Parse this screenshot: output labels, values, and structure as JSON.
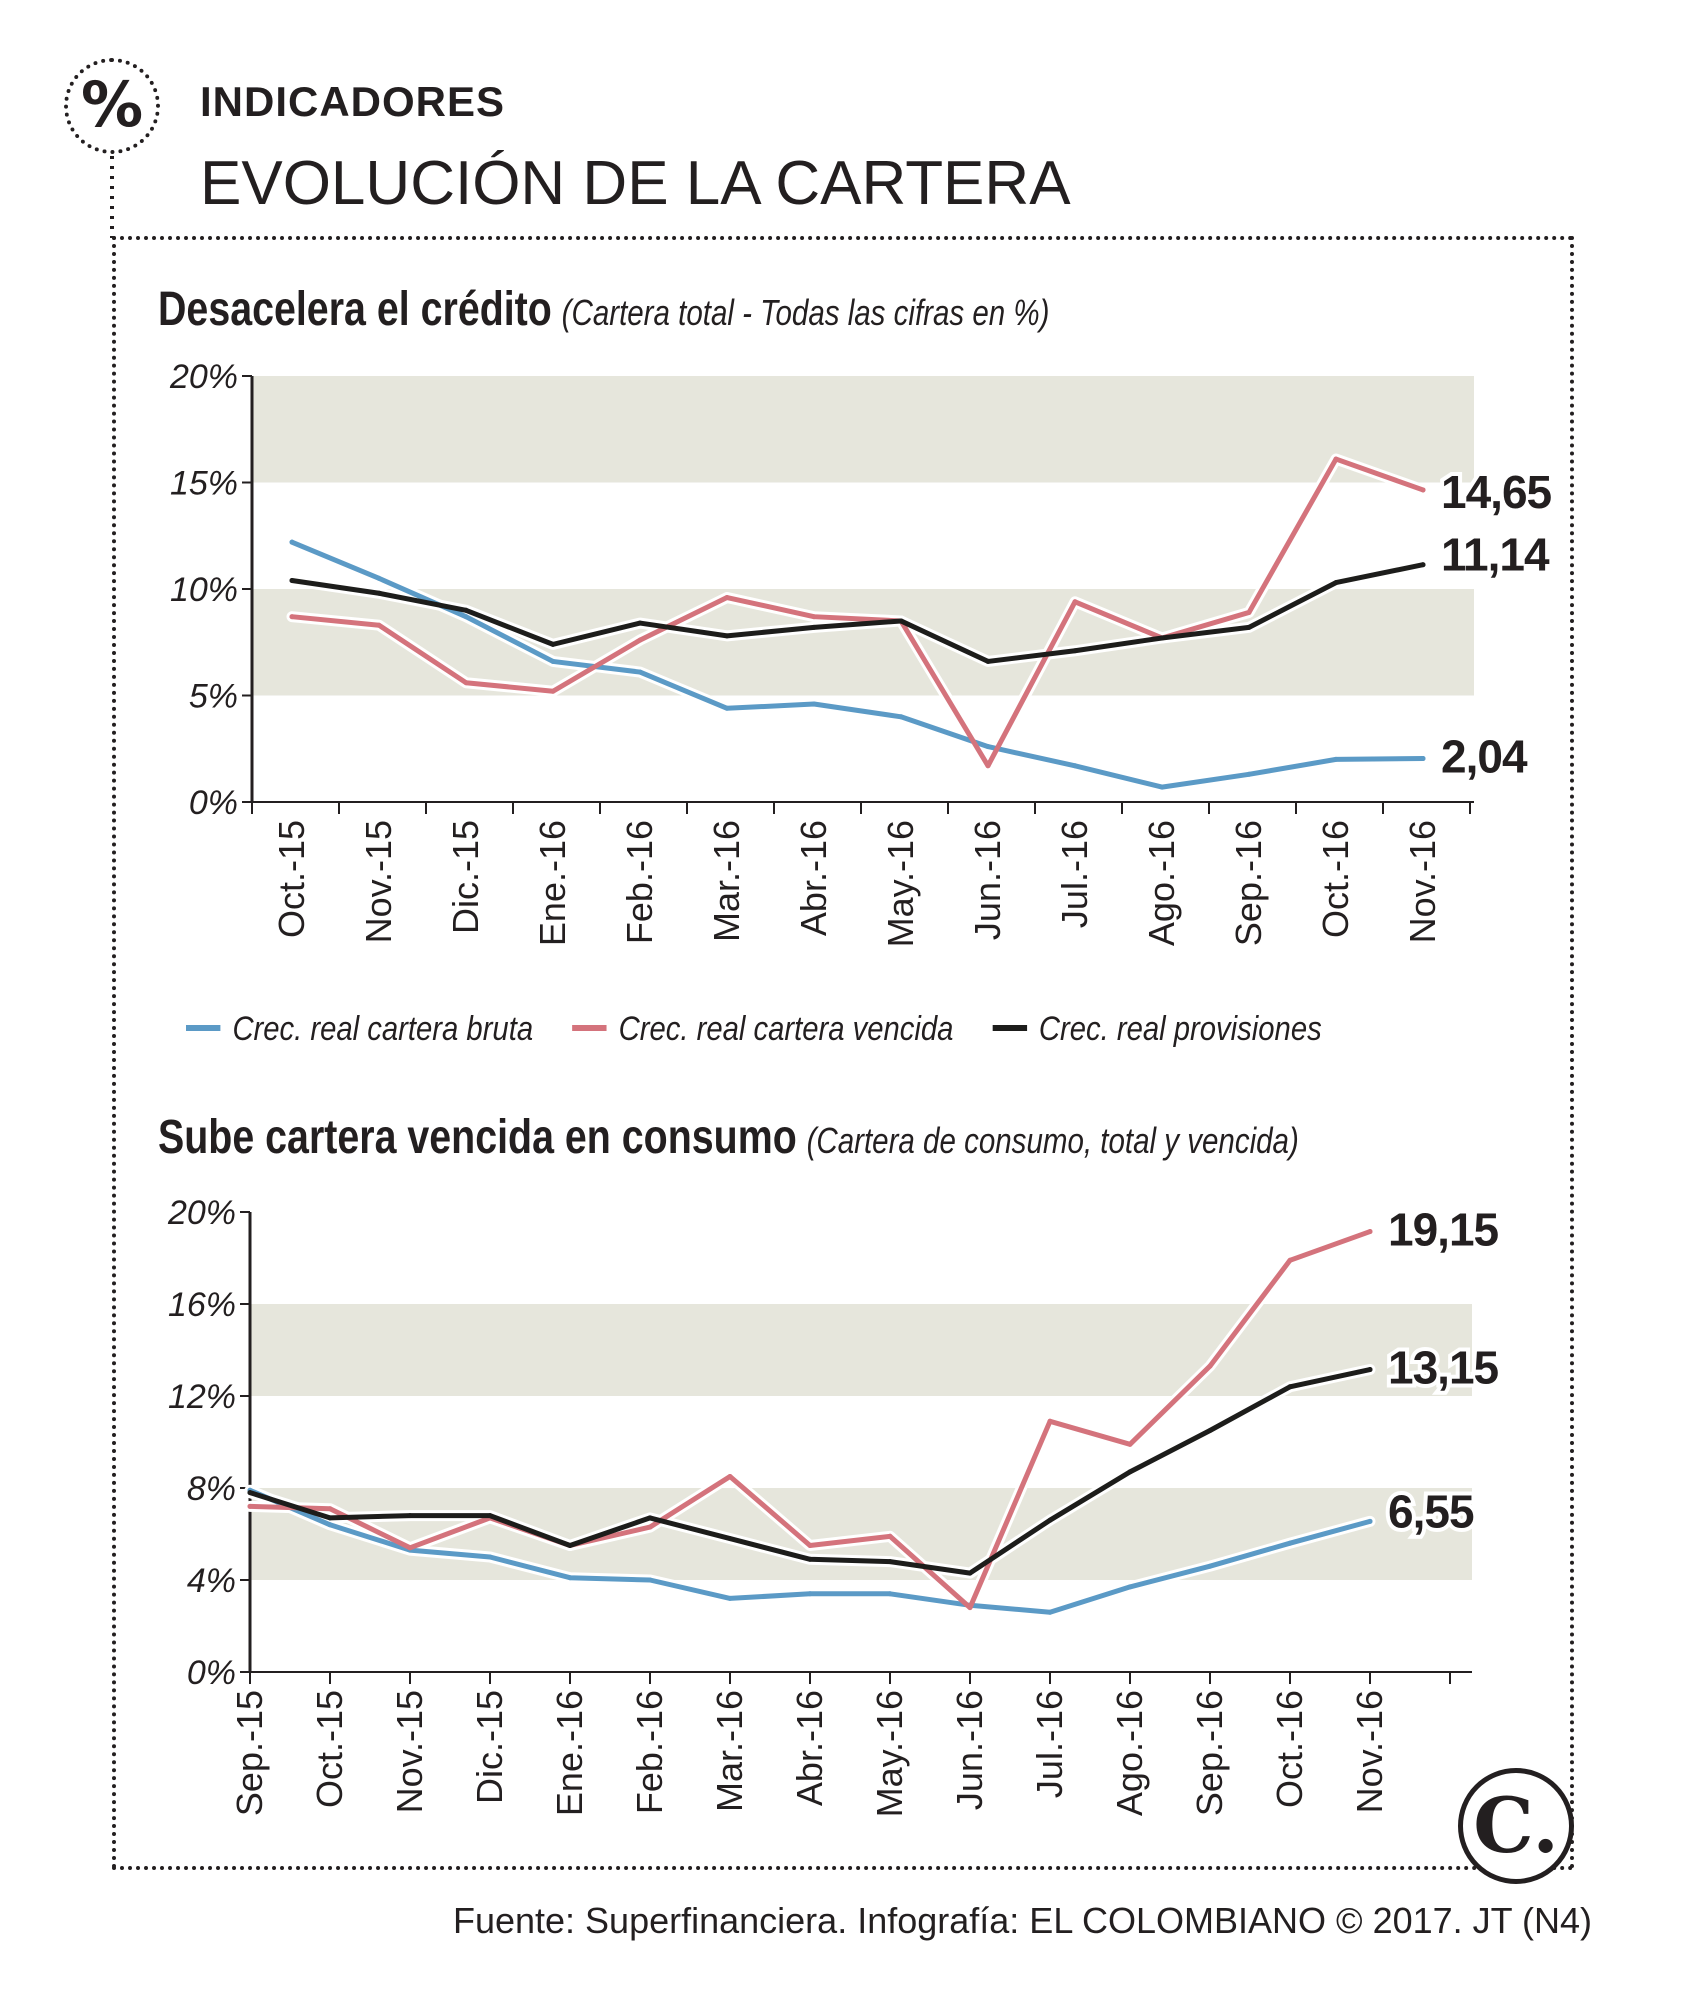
{
  "header": {
    "kicker": "INDICADORES",
    "title": "EVOLUCIÓN DE LA CARTERA",
    "icon": "percent-icon"
  },
  "colors": {
    "bruta": "#5b9ac6",
    "vencida": "#d4737c",
    "provisiones": "#1d1d1b",
    "band": "#e6e6dc"
  },
  "legend": {
    "items": [
      {
        "label": "Crec. real cartera bruta",
        "color": "#5b9ac6"
      },
      {
        "label": "Crec. real cartera vencida",
        "color": "#d4737c"
      },
      {
        "label": "Crec. real provisiones",
        "color": "#1d1d1b"
      }
    ]
  },
  "charts": {
    "c1": {
      "heading": "Desacelera el crédito",
      "subheading": "(Cartera total - Todas las cifras en %)"
    },
    "c2": {
      "heading": "Sube cartera vencida en consumo",
      "subheading": "(Cartera de consumo, total y vencida)"
    }
  },
  "chart_data": [
    {
      "type": "line",
      "title": "Desacelera el crédito",
      "subtitle": "(Cartera total - Todas las cifras en %)",
      "categories": [
        "Oct.-15",
        "Nov.-15",
        "Dic.-15",
        "Ene.-16",
        "Feb.-16",
        "Mar.-16",
        "Abr.-16",
        "May.-16",
        "Jun.-16",
        "Jul.-16",
        "Ago.-16",
        "Sep.-16",
        "Oct.-16",
        "Nov.-16"
      ],
      "y_ticks": [
        0,
        5,
        10,
        15,
        20
      ],
      "y_tick_labels": [
        "0%",
        "5%",
        "10%",
        "15%",
        "20%"
      ],
      "ylim": [
        0,
        20
      ],
      "bands": [
        [
          5,
          10
        ],
        [
          15,
          20
        ]
      ],
      "series": [
        {
          "name": "Crec. real cartera bruta",
          "color": "#5b9ac6",
          "end_label": "2,04",
          "values": [
            12.2,
            10.5,
            8.7,
            6.6,
            6.1,
            4.4,
            4.6,
            4.0,
            2.6,
            1.7,
            0.7,
            1.3,
            2.0,
            2.04
          ]
        },
        {
          "name": "Crec. real cartera vencida",
          "color": "#d4737c",
          "end_label": "14,65",
          "values": [
            8.7,
            8.3,
            5.6,
            5.2,
            7.6,
            9.6,
            8.7,
            8.5,
            1.7,
            9.4,
            7.7,
            8.9,
            16.1,
            14.65
          ]
        },
        {
          "name": "Crec. real provisiones",
          "color": "#1d1d1b",
          "end_label": "11,14",
          "values": [
            10.4,
            9.8,
            9.0,
            7.4,
            8.4,
            7.8,
            8.2,
            8.5,
            6.6,
            7.1,
            7.7,
            8.2,
            10.3,
            11.14
          ]
        }
      ]
    },
    {
      "type": "line",
      "title": "Sube cartera vencida en consumo",
      "subtitle": "(Cartera de consumo, total y vencida)",
      "categories": [
        "Sep.-15",
        "Oct.-15",
        "Nov.-15",
        "Dic.-15",
        "Ene.-16",
        "Feb.-16",
        "Mar.-16",
        "Abr.-16",
        "May.-16",
        "Jun.-16",
        "Jul.-16",
        "Ago.-16",
        "Sep.-16",
        "Oct.-16",
        "Nov.-16"
      ],
      "y_ticks": [
        0,
        4,
        8,
        12,
        16,
        20
      ],
      "y_tick_labels": [
        "0%",
        "4%",
        "8%",
        "12%",
        "16%",
        "20%"
      ],
      "ylim": [
        0,
        20
      ],
      "bands": [
        [
          4,
          8
        ],
        [
          12,
          16
        ]
      ],
      "series": [
        {
          "name": "Crec. real cartera bruta",
          "color": "#5b9ac6",
          "end_label": "6,55",
          "values": [
            7.9,
            6.4,
            5.3,
            5.0,
            4.1,
            4.0,
            3.2,
            3.4,
            3.4,
            2.9,
            2.6,
            3.7,
            4.6,
            5.6,
            6.55
          ]
        },
        {
          "name": "Crec. real cartera vencida",
          "color": "#d4737c",
          "end_label": "19,15",
          "values": [
            7.2,
            7.1,
            5.4,
            6.7,
            5.5,
            6.3,
            8.5,
            5.5,
            5.9,
            2.8,
            10.9,
            9.9,
            13.3,
            17.9,
            19.15
          ]
        },
        {
          "name": "Crec. real provisiones",
          "color": "#1d1d1b",
          "end_label": "13,15",
          "values": [
            7.8,
            6.7,
            6.8,
            6.8,
            5.5,
            6.7,
            5.8,
            4.9,
            4.8,
            4.3,
            6.6,
            8.7,
            10.5,
            12.4,
            13.15
          ]
        }
      ]
    }
  ],
  "footer": {
    "source": "Fuente: Superfinanciera. Infografía: EL COLOMBIANO © 2017. JT (N4)",
    "logo_text": "C."
  }
}
